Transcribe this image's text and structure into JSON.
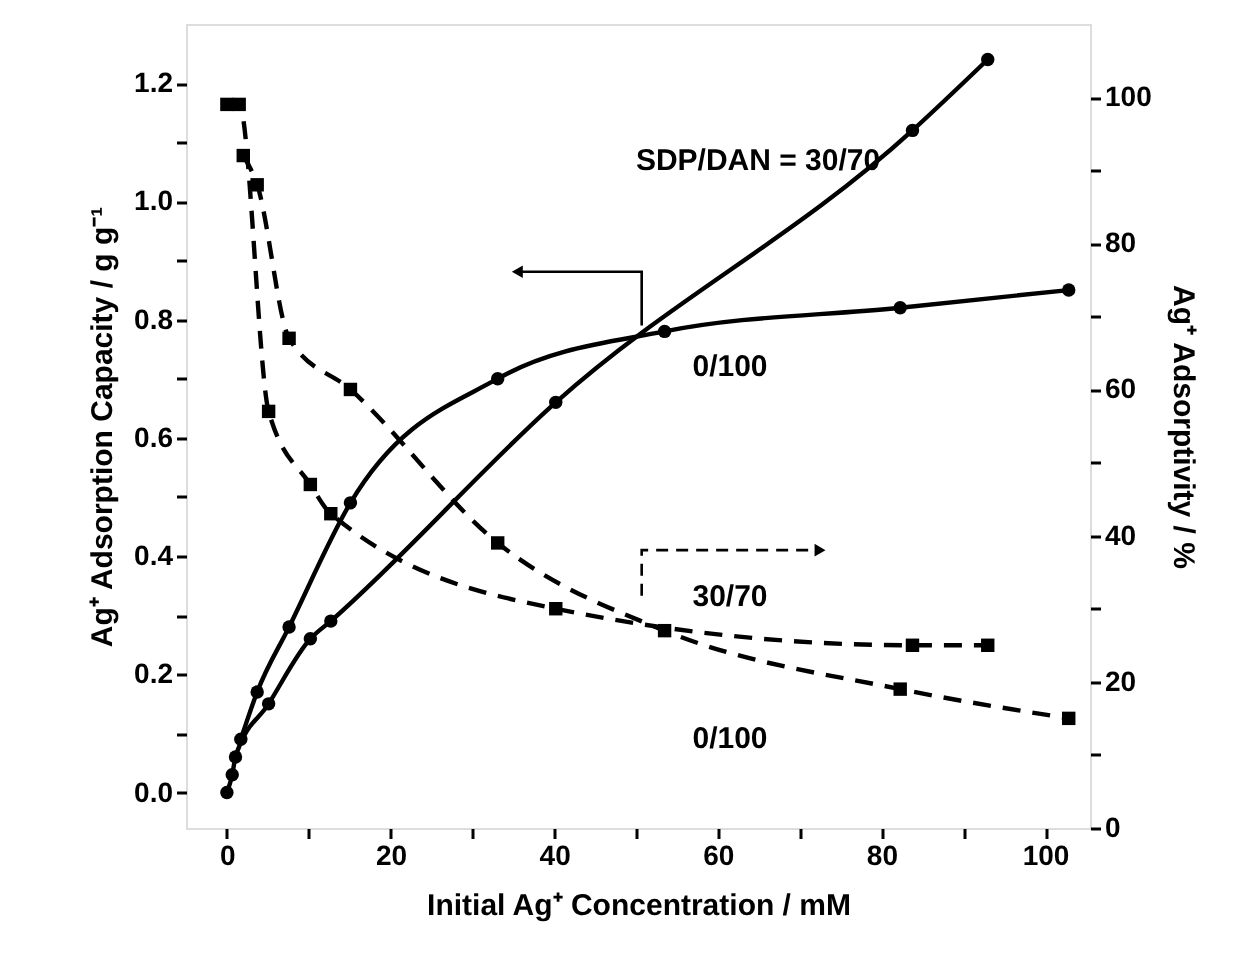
{
  "chart_data": {
    "type": "line",
    "xlabel": "Initial Ag⁺ Concentration / mM",
    "ylabel": "Ag⁺ Adsorption Capacity / g g⁻¹",
    "y2label": "Ag⁺ Adsorptivity / %",
    "xlim": [
      -5,
      105.5
    ],
    "ylim": [
      -0.06,
      1.3
    ],
    "y2lim": [
      0,
      110
    ],
    "xticks": [
      0,
      {
        "value": 10,
        "label": null
      },
      20,
      {
        "value": 30,
        "label": null
      },
      40,
      {
        "value": 50,
        "label": null
      },
      60,
      {
        "value": 70,
        "label": null
      },
      80,
      {
        "value": 90,
        "label": null
      },
      100
    ],
    "yticks": [
      {
        "value": 0,
        "label": "0.0"
      },
      {
        "value": 0.1,
        "label": null
      },
      {
        "value": 0.2,
        "label": "0.2"
      },
      {
        "value": 0.3,
        "label": null
      },
      {
        "value": 0.4,
        "label": "0.4"
      },
      {
        "value": 0.5,
        "label": null
      },
      {
        "value": 0.6,
        "label": "0.6"
      },
      {
        "value": 0.7,
        "label": null
      },
      {
        "value": 0.8,
        "label": "0.8"
      },
      {
        "value": 0.9,
        "label": null
      },
      {
        "value": 1.0,
        "label": "1.0"
      },
      {
        "value": 1.1,
        "label": null
      },
      {
        "value": 1.2,
        "label": "1.2"
      }
    ],
    "y2ticks": [
      0,
      {
        "value": 10,
        "label": null
      },
      20,
      {
        "value": 30,
        "label": null
      },
      40,
      {
        "value": 50,
        "label": null
      },
      60,
      {
        "value": 70,
        "label": null
      },
      80,
      {
        "value": 90,
        "label": null
      },
      100
    ],
    "grid": false,
    "series": [
      {
        "name": "SDP/DAN = 30/70",
        "color": "#000000",
        "marker": "circle",
        "line_style": "solid",
        "x": [
          0,
          0.65,
          1.05,
          5.1,
          10.2,
          12.7,
          40.2,
          83.8,
          93
        ],
        "values": [
          0,
          0.03,
          0.06,
          0.15,
          0.26,
          0.29,
          0.66,
          1.12,
          1.24
        ]
      },
      {
        "name": "0/100",
        "color": "#000000",
        "marker": "circle",
        "line_style": "solid",
        "x": [
          1.7,
          3.7,
          7.6,
          15.1,
          33.1,
          53.5,
          82.3,
          102.9
        ],
        "values": [
          0.09,
          0.17,
          0.28,
          0.49,
          0.7,
          0.78,
          0.82,
          0.85
        ]
      },
      {
        "name": "30/70",
        "color": "#000000",
        "marker": "square",
        "line_style": "dashed",
        "axis": "y2",
        "x": [
          0,
          1.5,
          5.1,
          10.2,
          12.7,
          40.2,
          83.8,
          93
        ],
        "values": [
          99,
          99,
          57,
          47,
          43,
          30,
          25,
          25
        ]
      },
      {
        "name": "0/100",
        "color": "#000000",
        "marker": "square",
        "line_style": "dashed",
        "axis": "y2",
        "x": [
          2,
          3.7,
          7.6,
          15.1,
          33.1,
          53.5,
          82.3,
          102.9
        ],
        "values": [
          92,
          88,
          67,
          60,
          39,
          27,
          19,
          15
        ]
      }
    ]
  }
}
